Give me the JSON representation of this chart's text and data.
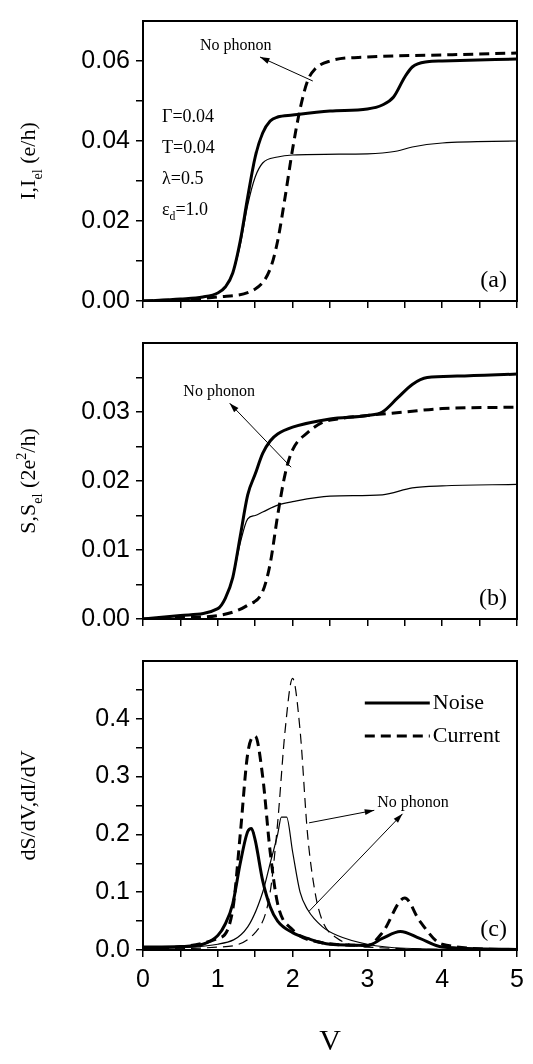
{
  "chart_data": [
    {
      "type": "line",
      "ylabel": "I,I$_{el}$ (e/h)",
      "xlim": [
        0,
        5
      ],
      "xticks": [
        {
          "value": 0,
          "label": null
        },
        {
          "value": 0.5,
          "label": null
        },
        {
          "value": 1,
          "label": null
        },
        {
          "value": 1.5,
          "label": null
        },
        {
          "value": 2,
          "label": null
        },
        {
          "value": 2.5,
          "label": null
        },
        {
          "value": 3,
          "label": null
        },
        {
          "value": 3.5,
          "label": null
        },
        {
          "value": 4,
          "label": null
        },
        {
          "value": 4.5,
          "label": null
        },
        {
          "value": 5,
          "label": null
        }
      ],
      "ylim": [
        0,
        0.07
      ],
      "yticks": [
        {
          "value": 0,
          "label": "0.00"
        },
        {
          "value": 0.01,
          "label": null
        },
        {
          "value": 0.02,
          "label": "0.02"
        },
        {
          "value": 0.03,
          "label": null
        },
        {
          "value": 0.04,
          "label": "0.04"
        },
        {
          "value": 0.05,
          "label": null
        },
        {
          "value": 0.06,
          "label": "0.06"
        }
      ],
      "tick_labels": "y",
      "series": [
        {
          "color": "#000000",
          "line_style": "solid",
          "x": [
            0,
            0.5,
            0.8,
            1.0,
            1.1,
            1.2,
            1.3,
            1.4,
            1.5,
            1.6,
            1.7,
            1.8,
            2.0,
            2.5,
            3.0,
            3.2,
            3.35,
            3.5,
            3.6,
            3.8,
            4.0,
            5.0
          ],
          "values": [
            0,
            0.0005,
            0.001,
            0.002,
            0.0035,
            0.007,
            0.015,
            0.026,
            0.036,
            0.042,
            0.045,
            0.046,
            0.0465,
            0.0475,
            0.048,
            0.049,
            0.051,
            0.056,
            0.0585,
            0.0598,
            0.06,
            0.0605
          ]
        },
        {
          "color": "#000000",
          "line_style": "solid",
          "x": [
            0,
            0.5,
            0.8,
            1.0,
            1.1,
            1.2,
            1.3,
            1.4,
            1.5,
            1.6,
            1.8,
            2.0,
            3.0,
            3.2,
            3.4,
            3.6,
            4.0,
            5.0
          ],
          "values": [
            0,
            0.0005,
            0.001,
            0.002,
            0.0035,
            0.007,
            0.014,
            0.024,
            0.031,
            0.0345,
            0.036,
            0.0365,
            0.0368,
            0.037,
            0.0375,
            0.0385,
            0.0395,
            0.04
          ]
        },
        {
          "color": "#000000",
          "line_style": "dashed",
          "x": [
            0,
            0.5,
            1.0,
            1.5,
            1.7,
            1.8,
            1.9,
            2.0,
            2.1,
            2.2,
            2.3,
            2.5,
            3.0,
            4.0,
            5.0
          ],
          "values": [
            0,
            0.0003,
            0.001,
            0.003,
            0.008,
            0.015,
            0.026,
            0.038,
            0.048,
            0.055,
            0.058,
            0.06,
            0.061,
            0.0615,
            0.062
          ]
        }
      ],
      "annotations": [
        {
          "text": "No phonon",
          "x": 2.27,
          "y": 0.055
        },
        "Γ=0.04",
        "T=0.04",
        "λ=0.5",
        "ε$_{d}$=1.0",
        "(a)"
      ]
    },
    {
      "type": "line",
      "ylabel": "S,S$_{el}$ (2e$^{2}$/h)",
      "xlim": [
        0,
        5
      ],
      "xticks": [
        {
          "value": 0,
          "label": null
        },
        {
          "value": 0.5,
          "label": null
        },
        {
          "value": 1,
          "label": null
        },
        {
          "value": 1.5,
          "label": null
        },
        {
          "value": 2,
          "label": null
        },
        {
          "value": 2.5,
          "label": null
        },
        {
          "value": 3,
          "label": null
        },
        {
          "value": 3.5,
          "label": null
        },
        {
          "value": 4,
          "label": null
        },
        {
          "value": 4.5,
          "label": null
        },
        {
          "value": 5,
          "label": null
        }
      ],
      "ylim": [
        0,
        0.04
      ],
      "yticks": [
        {
          "value": 0,
          "label": "0.00"
        },
        {
          "value": 0.005,
          "label": null
        },
        {
          "value": 0.01,
          "label": "0.01"
        },
        {
          "value": 0.015,
          "label": null
        },
        {
          "value": 0.02,
          "label": "0.02"
        },
        {
          "value": 0.025,
          "label": null
        },
        {
          "value": 0.03,
          "label": "0.03"
        },
        {
          "value": 0.035,
          "label": null
        }
      ],
      "tick_labels": "y",
      "series": [
        {
          "color": "#000000",
          "line_style": "solid",
          "x": [
            0,
            0.5,
            1.0,
            1.1,
            1.2,
            1.3,
            1.4,
            1.5,
            1.6,
            1.7,
            1.8,
            2.0,
            2.5,
            3.0,
            3.2,
            3.4,
            3.6,
            3.8,
            4.2,
            5.0
          ],
          "values": [
            0,
            0.0005,
            0.0015,
            0.003,
            0.006,
            0.012,
            0.018,
            0.021,
            0.024,
            0.0258,
            0.0268,
            0.0278,
            0.029,
            0.0295,
            0.03,
            0.032,
            0.034,
            0.035,
            0.0352,
            0.0355
          ]
        },
        {
          "color": "#000000",
          "line_style": "solid",
          "x": [
            0,
            0.5,
            1.0,
            1.1,
            1.2,
            1.3,
            1.4,
            1.5,
            1.6,
            1.8,
            2.0,
            2.5,
            3.2,
            3.6,
            4.0,
            5.0
          ],
          "values": [
            0,
            0.0005,
            0.0015,
            0.003,
            0.006,
            0.011,
            0.0145,
            0.015,
            0.0155,
            0.0165,
            0.017,
            0.0178,
            0.018,
            0.019,
            0.0193,
            0.0195
          ]
        },
        {
          "color": "#000000",
          "line_style": "dashed",
          "x": [
            0,
            0.5,
            1.0,
            1.4,
            1.6,
            1.7,
            1.8,
            1.9,
            2.0,
            2.2,
            2.4,
            2.6,
            3.0,
            3.5,
            4.0,
            5.0
          ],
          "values": [
            0,
            0.0002,
            0.0005,
            0.002,
            0.004,
            0.008,
            0.015,
            0.021,
            0.0245,
            0.027,
            0.0285,
            0.029,
            0.0295,
            0.03,
            0.0305,
            0.0307
          ]
        }
      ],
      "annotations": [
        {
          "text": "No phonon",
          "x": 1.98,
          "y": 0.022
        },
        "(b)"
      ]
    },
    {
      "type": "line",
      "xlabel": "V",
      "ylabel": "dS/dV,dI/dV",
      "xlim": [
        0,
        5
      ],
      "xticks": [
        0,
        {
          "value": 0.5,
          "label": null
        },
        1,
        {
          "value": 1.5,
          "label": null
        },
        2,
        {
          "value": 2.5,
          "label": null
        },
        3,
        {
          "value": 3.5,
          "label": null
        },
        4,
        {
          "value": 4.5,
          "label": null
        },
        5
      ],
      "ylim": [
        0,
        0.5
      ],
      "yticks": [
        {
          "value": 0,
          "label": "0.0"
        },
        {
          "value": 0.05,
          "label": null
        },
        {
          "value": 0.1,
          "label": "0.1"
        },
        {
          "value": 0.15,
          "label": null
        },
        {
          "value": 0.2,
          "label": "0.2"
        },
        {
          "value": 0.25,
          "label": null
        },
        {
          "value": 0.3,
          "label": "0.3"
        },
        {
          "value": 0.35,
          "label": null
        },
        {
          "value": 0.4,
          "label": "0.4"
        },
        {
          "value": 0.45,
          "label": null
        }
      ],
      "legend": "top right",
      "series": [
        {
          "name": "Noise",
          "color": "#000000",
          "line_style": "solid",
          "x": [
            0,
            0.5,
            0.8,
            1.0,
            1.1,
            1.2,
            1.3,
            1.4,
            1.45,
            1.5,
            1.6,
            1.7,
            1.8,
            2.0,
            2.2,
            2.5,
            3.0,
            3.2,
            3.44,
            3.7,
            4.0,
            5.0
          ],
          "values": [
            0.005,
            0.006,
            0.01,
            0.025,
            0.045,
            0.08,
            0.15,
            0.205,
            0.21,
            0.19,
            0.12,
            0.075,
            0.05,
            0.03,
            0.02,
            0.01,
            0.008,
            0.02,
            0.032,
            0.02,
            0.005,
            0.001
          ]
        },
        {
          "color": "#000000",
          "line_style": "solid",
          "x": [
            0,
            1.0,
            1.4,
            1.6,
            1.7,
            1.8,
            1.85,
            1.92,
            2.0,
            2.1,
            2.2,
            2.4,
            2.6,
            3.0,
            3.5,
            5.0
          ],
          "values": [
            0.002,
            0.01,
            0.04,
            0.1,
            0.15,
            0.2,
            0.23,
            0.23,
            0.17,
            0.1,
            0.07,
            0.04,
            0.025,
            0.01,
            0.003,
            0
          ]
        },
        {
          "name": "Current",
          "color": "#000000",
          "line_style": "dashed",
          "x": [
            0,
            1.0,
            1.2,
            1.3,
            1.4,
            1.5,
            1.6,
            1.7,
            1.8,
            2.0,
            2.3,
            3.0,
            3.2,
            3.5,
            3.7,
            4.0,
            5.0
          ],
          "values": [
            0.002,
            0.02,
            0.07,
            0.2,
            0.34,
            0.37,
            0.3,
            0.17,
            0.08,
            0.035,
            0.015,
            0.008,
            0.03,
            0.09,
            0.05,
            0.01,
            0
          ]
        },
        {
          "color": "#000000",
          "line_style": "dashed",
          "x": [
            0,
            1.0,
            1.5,
            1.7,
            1.8,
            1.9,
            2.0,
            2.1,
            2.2,
            2.3,
            2.4,
            2.6,
            3.0,
            5.0
          ],
          "values": [
            0.001,
            0.005,
            0.03,
            0.1,
            0.22,
            0.38,
            0.47,
            0.38,
            0.2,
            0.1,
            0.05,
            0.02,
            0.005,
            0
          ]
        }
      ],
      "annotations": [
        {
          "text": "No phonon",
          "x": 2.22,
          "y": 0.22
        },
        "(c)"
      ]
    }
  ]
}
